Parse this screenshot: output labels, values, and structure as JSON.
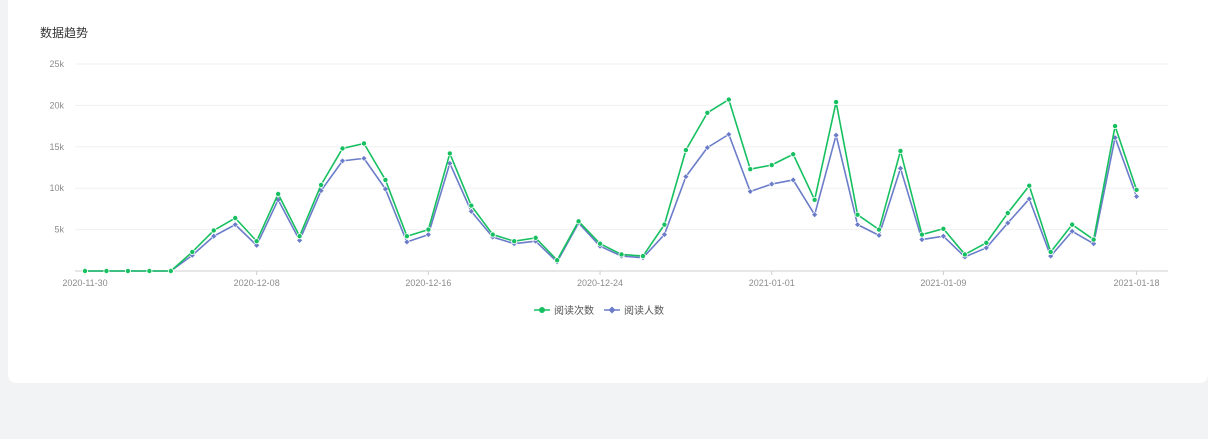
{
  "card": {
    "title": "数据趋势"
  },
  "colors": {
    "reads": "#16c060",
    "readers": "#6b7cc9",
    "grid": "#f0f0f0",
    "axis": "#cfcfcf"
  },
  "chart_data": {
    "type": "line",
    "title": "数据趋势",
    "x": [
      "2020-11-30",
      "2020-12-01",
      "2020-12-02",
      "2020-12-03",
      "2020-12-04",
      "2020-12-05",
      "2020-12-06",
      "2020-12-07",
      "2020-12-08",
      "2020-12-09",
      "2020-12-10",
      "2020-12-11",
      "2020-12-12",
      "2020-12-13",
      "2020-12-14",
      "2020-12-15",
      "2020-12-16",
      "2020-12-17",
      "2020-12-18",
      "2020-12-19",
      "2020-12-20",
      "2020-12-21",
      "2020-12-22",
      "2020-12-23",
      "2020-12-24",
      "2020-12-25",
      "2020-12-26",
      "2020-12-27",
      "2020-12-28",
      "2020-12-29",
      "2020-12-30",
      "2020-12-31",
      "2021-01-01",
      "2021-01-02",
      "2021-01-03",
      "2021-01-04",
      "2021-01-05",
      "2021-01-06",
      "2021-01-07",
      "2021-01-08",
      "2021-01-09",
      "2021-01-10",
      "2021-01-11",
      "2021-01-12",
      "2021-01-13",
      "2021-01-14",
      "2021-01-15",
      "2021-01-16",
      "2021-01-17",
      "2021-01-18",
      "2021-01-19"
    ],
    "xticks": [
      "2020-11-30",
      "2020-12-08",
      "2020-12-16",
      "2020-12-24",
      "2021-01-01",
      "2021-01-09",
      "2021-01-18"
    ],
    "yticks": [
      "5k",
      "10k",
      "15k",
      "20k",
      "25k"
    ],
    "ylim": [
      0,
      25000
    ],
    "grid": true,
    "legend_position": "bottom-center",
    "series": [
      {
        "name": "阅读次数",
        "values": [
          0,
          0,
          0,
          0,
          0,
          2300,
          4900,
          6400,
          3600,
          9300,
          4200,
          10400,
          14800,
          15400,
          11000,
          4200,
          5000,
          14200,
          7900,
          4400,
          3600,
          4000,
          1300,
          6000,
          3300,
          2000,
          1800,
          5600,
          14600,
          19100,
          20700,
          12300,
          12800,
          14100,
          8600,
          20400,
          6800,
          5000,
          14500,
          4400,
          5100,
          2000,
          3400,
          7000,
          10300,
          2300,
          5600,
          3800,
          17500,
          9800,
          null
        ]
      },
      {
        "name": "阅读人数",
        "values": [
          0,
          0,
          0,
          0,
          0,
          1900,
          4200,
          5600,
          3100,
          8600,
          3700,
          9700,
          13300,
          13600,
          9900,
          3500,
          4400,
          13000,
          7200,
          4100,
          3300,
          3600,
          1100,
          5800,
          3000,
          1800,
          1600,
          4400,
          11400,
          14900,
          16500,
          9600,
          10500,
          11000,
          6800,
          16400,
          5600,
          4300,
          12400,
          3800,
          4200,
          1700,
          2800,
          5800,
          8700,
          1800,
          4800,
          3300,
          16100,
          9000,
          null
        ]
      }
    ]
  }
}
